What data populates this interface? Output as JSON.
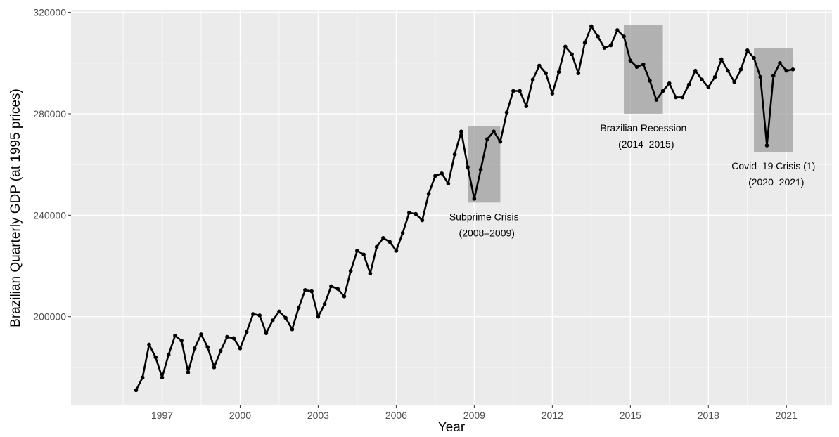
{
  "chart_data": {
    "type": "line",
    "title": "",
    "xlabel": "Year",
    "ylabel": "Brazilian Quarterly GDP (at 1995 prices)",
    "xlim": [
      1993.5,
      2022.75
    ],
    "ylim": [
      165000,
      321000
    ],
    "x_ticks": [
      1997,
      2000,
      2003,
      2006,
      2009,
      2012,
      2015,
      2018,
      2021
    ],
    "x_tick_labels": [
      "1997",
      "2000",
      "2003",
      "2006",
      "2009",
      "2012",
      "2015",
      "2018",
      "2021"
    ],
    "y_ticks": [
      200000,
      240000,
      280000,
      320000
    ],
    "y_tick_labels": [
      "200000",
      "240000",
      "280000",
      "320000"
    ],
    "grid": true,
    "legend": "none",
    "colors": {
      "panel": "#ebebeb",
      "grid": "#ffffff",
      "line": "#000000",
      "shade": "#999999"
    },
    "series": [
      {
        "x": [
          1996.0,
          1996.25,
          1996.5,
          1996.75,
          1997.0,
          1997.25,
          1997.5,
          1997.75,
          1998.0,
          1998.25,
          1998.5,
          1998.75,
          1999.0,
          1999.25,
          1999.5,
          1999.75,
          2000.0,
          2000.25,
          2000.5,
          2000.75,
          2001.0,
          2001.25,
          2001.5,
          2001.75,
          2002.0,
          2002.25,
          2002.5,
          2002.75,
          2003.0,
          2003.25,
          2003.5,
          2003.75,
          2004.0,
          2004.25,
          2004.5,
          2004.75,
          2005.0,
          2005.25,
          2005.5,
          2005.75,
          2006.0,
          2006.25,
          2006.5,
          2006.75,
          2007.0,
          2007.25,
          2007.5,
          2007.75,
          2008.0,
          2008.25,
          2008.5,
          2008.75,
          2009.0,
          2009.25,
          2009.5,
          2009.75,
          2010.0,
          2010.25,
          2010.5,
          2010.75,
          2011.0,
          2011.25,
          2011.5,
          2011.75,
          2012.0,
          2012.25,
          2012.5,
          2012.75,
          2013.0,
          2013.25,
          2013.5,
          2013.75,
          2014.0,
          2014.25,
          2014.5,
          2014.75,
          2015.0,
          2015.25,
          2015.5,
          2015.75,
          2016.0,
          2016.25,
          2016.5,
          2016.75,
          2017.0,
          2017.25,
          2017.5,
          2017.75,
          2018.0,
          2018.25,
          2018.5,
          2018.75,
          2019.0,
          2019.25,
          2019.5,
          2019.75,
          2020.0,
          2020.25,
          2020.5,
          2020.75,
          2021.0,
          2021.25
        ],
        "y": [
          171000,
          176000,
          189000,
          184000,
          176000,
          185000,
          192500,
          190500,
          178000,
          187500,
          193000,
          188000,
          180000,
          186500,
          192000,
          191500,
          187500,
          194000,
          201000,
          200500,
          193500,
          198500,
          202000,
          199500,
          195000,
          203500,
          210500,
          210000,
          200000,
          205000,
          212000,
          211000,
          208000,
          218000,
          226000,
          224500,
          217000,
          227500,
          231000,
          229500,
          226000,
          233000,
          241000,
          240500,
          238000,
          248500,
          255500,
          256500,
          252500,
          264000,
          273000,
          259000,
          246500,
          258000,
          270000,
          273000,
          269000,
          280500,
          289000,
          289000,
          283000,
          293500,
          299000,
          296000,
          288000,
          296500,
          306500,
          303500,
          296000,
          308000,
          314500,
          310500,
          306000,
          307000,
          313000,
          310500,
          301000,
          298500,
          299500,
          293000,
          285500,
          289000,
          292000,
          286500,
          286500,
          291500,
          297000,
          293500,
          290500,
          294500,
          301500,
          297000,
          292500,
          297500,
          305000,
          302000,
          294500,
          267500,
          295000,
          300000,
          297000,
          297500
        ]
      }
    ],
    "annotations": [
      {
        "x0": 2008.75,
        "x1": 2010.0,
        "y0": 245000,
        "y1": 275000,
        "line1": "Subprime Crisis",
        "line2": "(2008–2009)"
      },
      {
        "x0": 2014.75,
        "x1": 2016.25,
        "y0": 280000,
        "y1": 315000,
        "line1": "Brazilian Recession",
        "line2": "(2014–2015)"
      },
      {
        "x0": 2019.75,
        "x1": 2021.25,
        "y0": 265000,
        "y1": 306000,
        "line1": "Covid–19 Crisis (1)",
        "line2": "(2020–2021)"
      }
    ]
  }
}
